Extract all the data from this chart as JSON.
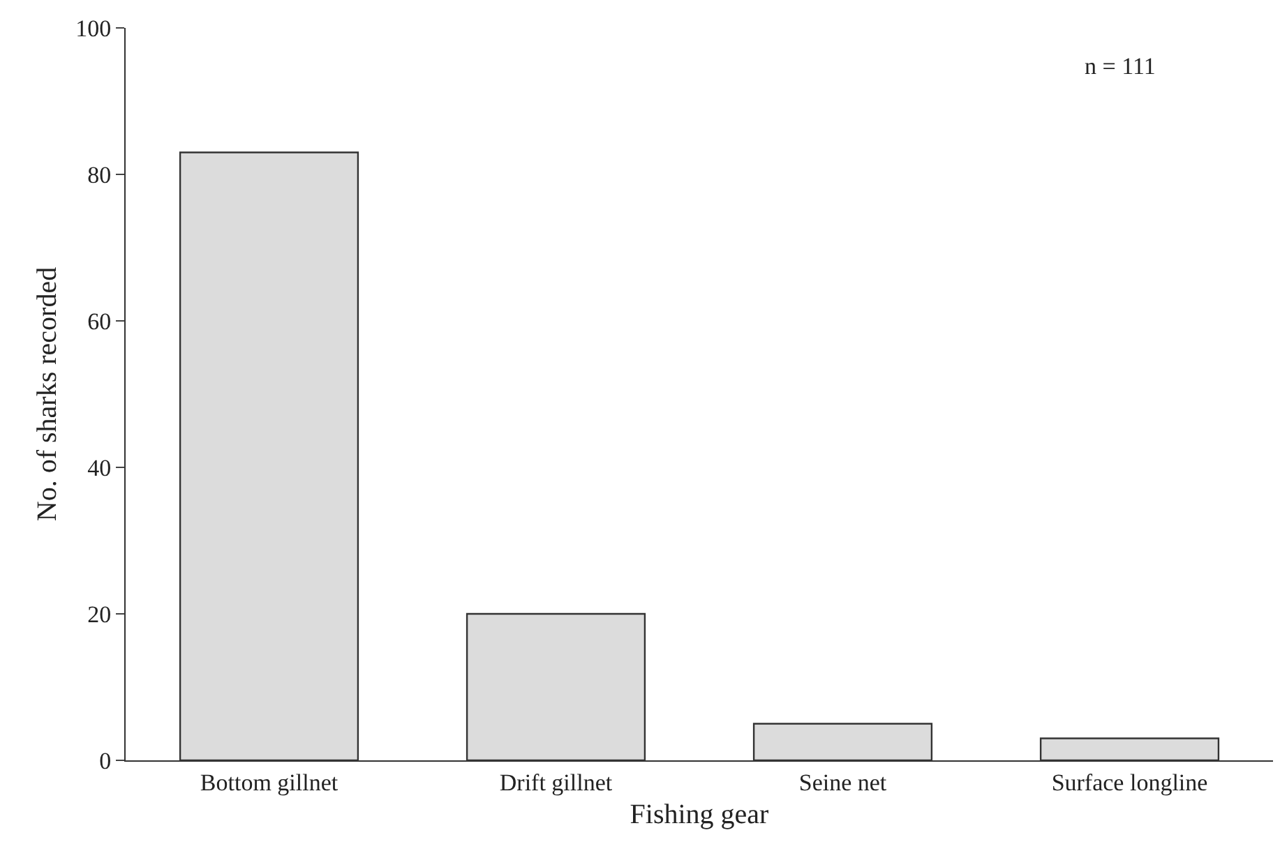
{
  "chart_data": {
    "type": "bar",
    "xlabel": "Fishing gear",
    "ylabel": "No. of sharks recorded",
    "categories": [
      "Bottom gillnet",
      "Drift gillnet",
      "Seine net",
      "Surface longline"
    ],
    "values": [
      83,
      20,
      5,
      3
    ],
    "color": "#dcdcdc",
    "ylim": [
      0,
      100
    ],
    "yticks": [
      0,
      20,
      40,
      60,
      80,
      100
    ],
    "grid": false,
    "annotations": [
      "n = 111"
    ]
  }
}
